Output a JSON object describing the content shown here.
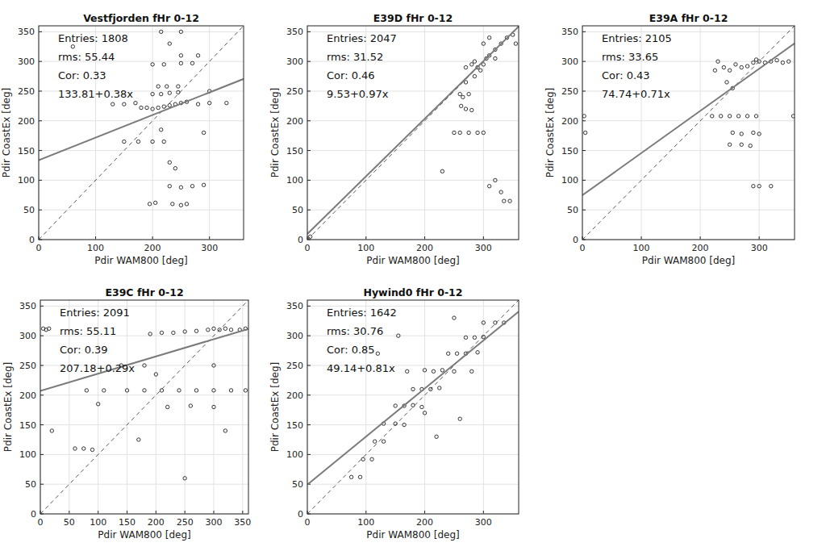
{
  "chart_data": [
    {
      "type": "scatter",
      "title": "Vestfjorden fHr 0-12",
      "xlabel": "Pdir WAM800 [deg]",
      "ylabel": "Pdir CoastEx [deg]",
      "xlim": [
        0,
        360
      ],
      "ylim": [
        0,
        360
      ],
      "xticks": [
        0,
        100,
        200,
        300
      ],
      "yticks": [
        0,
        50,
        100,
        150,
        200,
        250,
        300,
        350
      ],
      "grid": true,
      "color": "#333333",
      "marker": "circle",
      "annotations": [
        "Entries: 1808",
        "rms: 55.44",
        "Cor: 0.33",
        "133.81+0.38x"
      ],
      "fit": {
        "intercept": 133.81,
        "slope": 0.38
      },
      "x": [
        60,
        130,
        150,
        170,
        180,
        190,
        200,
        210,
        220,
        230,
        240,
        250,
        260,
        280,
        300,
        200,
        215,
        230,
        245,
        210,
        225,
        245,
        200,
        220,
        250,
        270,
        230,
        250,
        215,
        250,
        280,
        150,
        175,
        200,
        220,
        230,
        250,
        270,
        290,
        195,
        205,
        235,
        250,
        260,
        230,
        240,
        215,
        300,
        330,
        290
      ],
      "values": [
        325,
        228,
        228,
        230,
        222,
        222,
        220,
        222,
        224,
        226,
        228,
        230,
        232,
        228,
        230,
        245,
        245,
        247,
        248,
        258,
        258,
        258,
        295,
        295,
        297,
        297,
        330,
        350,
        350,
        310,
        310,
        165,
        165,
        165,
        165,
        90,
        88,
        90,
        92,
        60,
        62,
        60,
        58,
        60,
        130,
        120,
        185,
        250,
        230,
        180
      ]
    },
    {
      "type": "scatter",
      "title": "E39D fHr 0-12",
      "xlabel": "Pdir WAM800 [deg]",
      "ylabel": "Pdir CoastEx [deg]",
      "xlim": [
        0,
        360
      ],
      "ylim": [
        0,
        360
      ],
      "xticks": [
        0,
        100,
        200,
        300
      ],
      "yticks": [
        0,
        50,
        100,
        150,
        200,
        250,
        300,
        350
      ],
      "grid": true,
      "color": "#333333",
      "marker": "circle",
      "annotations": [
        "Entries: 2047",
        "rms: 31.52",
        "Cor: 0.46",
        "9.53+0.97x"
      ],
      "fit": {
        "intercept": 9.53,
        "slope": 0.97
      },
      "x": [
        270,
        280,
        285,
        290,
        295,
        300,
        305,
        310,
        320,
        330,
        340,
        350,
        300,
        310,
        320,
        285,
        270,
        260,
        265,
        275,
        262,
        270,
        280,
        250,
        260,
        275,
        290,
        300,
        230,
        310,
        320,
        330,
        335,
        345,
        355,
        5
      ],
      "values": [
        290,
        295,
        300,
        290,
        285,
        295,
        305,
        310,
        320,
        330,
        340,
        345,
        330,
        340,
        305,
        275,
        265,
        245,
        240,
        245,
        225,
        220,
        218,
        180,
        180,
        180,
        180,
        180,
        115,
        90,
        100,
        80,
        65,
        65,
        330,
        5
      ]
    },
    {
      "type": "scatter",
      "title": "E39A fHr 0-12",
      "xlabel": "Pdir WAM800 [deg]",
      "ylabel": "Pdir CoastEx [deg]",
      "xlim": [
        0,
        360
      ],
      "ylim": [
        0,
        360
      ],
      "xticks": [
        0,
        100,
        200,
        300
      ],
      "yticks": [
        0,
        50,
        100,
        150,
        200,
        250,
        300,
        350
      ],
      "grid": true,
      "color": "#333333",
      "marker": "circle",
      "annotations": [
        "Entries: 2105",
        "rms: 33.65",
        "Cor: 0.43",
        "74.74+0.71x"
      ],
      "fit": {
        "intercept": 74.74,
        "slope": 0.71
      },
      "x": [
        260,
        270,
        280,
        290,
        295,
        300,
        310,
        320,
        330,
        340,
        350,
        250,
        240,
        225,
        245,
        255,
        220,
        235,
        250,
        265,
        280,
        295,
        255,
        270,
        290,
        300,
        250,
        270,
        285,
        290,
        300,
        320,
        3,
        358,
        5,
        230
      ],
      "values": [
        295,
        290,
        292,
        298,
        303,
        300,
        298,
        300,
        302,
        298,
        300,
        285,
        290,
        285,
        265,
        255,
        208,
        208,
        208,
        208,
        208,
        208,
        180,
        178,
        180,
        178,
        160,
        160,
        158,
        90,
        90,
        90,
        208,
        208,
        180,
        300
      ]
    },
    {
      "type": "scatter",
      "title": "E39C fHr 0-12",
      "xlabel": "Pdir WAM800 [deg]",
      "ylabel": "Pdir CoastEx [deg]",
      "xlim": [
        0,
        360
      ],
      "ylim": [
        0,
        360
      ],
      "xticks": [
        0,
        50,
        100,
        150,
        200,
        250,
        300,
        350
      ],
      "yticks": [
        0,
        50,
        100,
        150,
        200,
        250,
        300,
        350
      ],
      "grid": true,
      "color": "#333333",
      "marker": "circle",
      "annotations": [
        "Entries: 2091",
        "rms: 55.11",
        "Cor: 0.39",
        "207.18+0.29x"
      ],
      "fit": {
        "intercept": 207.18,
        "slope": 0.29
      },
      "x": [
        5,
        10,
        15,
        190,
        210,
        230,
        250,
        270,
        290,
        300,
        310,
        320,
        330,
        345,
        355,
        80,
        110,
        150,
        180,
        210,
        240,
        270,
        300,
        330,
        355,
        140,
        180,
        300,
        200,
        220,
        260,
        300,
        60,
        75,
        90,
        170,
        250,
        320,
        20,
        100
      ],
      "values": [
        312,
        310,
        312,
        303,
        305,
        305,
        307,
        308,
        310,
        312,
        310,
        312,
        310,
        310,
        312,
        208,
        208,
        208,
        208,
        208,
        208,
        208,
        208,
        208,
        208,
        250,
        250,
        250,
        235,
        180,
        182,
        180,
        110,
        110,
        108,
        125,
        60,
        140,
        140,
        185
      ]
    },
    {
      "type": "scatter",
      "title": "Hywind0 fHr 0-12",
      "xlabel": "Pdir WAM800 [deg]",
      "ylabel": "Pdir CoastEx [deg]",
      "xlim": [
        0,
        360
      ],
      "ylim": [
        0,
        360
      ],
      "xticks": [
        0,
        100,
        200,
        300
      ],
      "yticks": [
        0,
        50,
        100,
        150,
        200,
        250,
        300,
        350
      ],
      "grid": true,
      "color": "#333333",
      "marker": "circle",
      "annotations": [
        "Entries: 1642",
        "rms: 30.76",
        "Cor: 0.85",
        "49.14+0.81x"
      ],
      "fit": {
        "intercept": 49.14,
        "slope": 0.81
      },
      "x": [
        300,
        320,
        335,
        270,
        285,
        300,
        240,
        255,
        270,
        290,
        200,
        215,
        230,
        250,
        180,
        195,
        210,
        225,
        150,
        165,
        180,
        195,
        130,
        150,
        165,
        115,
        130,
        95,
        110,
        75,
        90,
        120,
        170,
        250,
        260,
        220,
        155,
        280,
        200
      ],
      "values": [
        322,
        322,
        322,
        297,
        297,
        298,
        270,
        270,
        270,
        272,
        242,
        240,
        242,
        240,
        210,
        210,
        210,
        212,
        182,
        182,
        183,
        180,
        152,
        152,
        150,
        122,
        122,
        92,
        92,
        62,
        62,
        270,
        240,
        330,
        160,
        130,
        300,
        240,
        170
      ]
    }
  ]
}
